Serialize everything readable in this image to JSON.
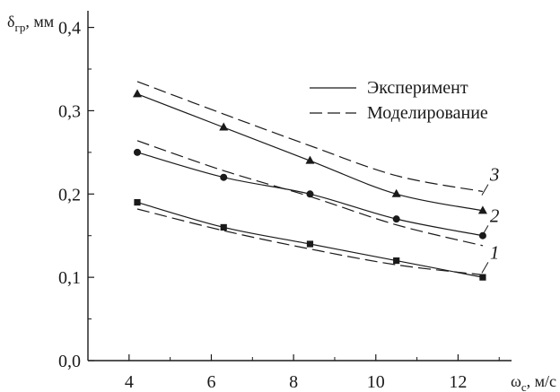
{
  "chart_data": {
    "type": "line",
    "ylabel": "δгр, мм",
    "xlabel": "ωс, м/с",
    "xlim": [
      3.0,
      13.3
    ],
    "ylim": [
      0.0,
      0.42
    ],
    "x_ticks": [
      4,
      6,
      8,
      10,
      12
    ],
    "x_tick_labels": [
      "4",
      "6",
      "8",
      "10",
      "12"
    ],
    "y_ticks": [
      0.0,
      0.1,
      0.2,
      0.3,
      0.4
    ],
    "y_tick_labels": [
      "0,0",
      "0,1",
      "0,2",
      "0,3",
      "0,4"
    ],
    "legend": {
      "placement": "top-right",
      "entries": [
        {
          "label": "Эксперимент",
          "style": "solid"
        },
        {
          "label": "Моделирование",
          "style": "dashed"
        }
      ]
    },
    "series": [
      {
        "label": "1",
        "marker": "square",
        "experiment": {
          "x": [
            4.2,
            6.3,
            8.4,
            10.5,
            12.6
          ],
          "y": [
            0.19,
            0.16,
            0.14,
            0.12,
            0.1
          ]
        },
        "model": {
          "x": [
            4.2,
            6.3,
            8.4,
            10.5,
            12.6
          ],
          "y": [
            0.182,
            0.156,
            0.134,
            0.115,
            0.103
          ]
        }
      },
      {
        "label": "2",
        "marker": "circle",
        "experiment": {
          "x": [
            4.2,
            6.3,
            8.4,
            10.5,
            12.6
          ],
          "y": [
            0.25,
            0.22,
            0.2,
            0.17,
            0.15
          ]
        },
        "model": {
          "x": [
            4.2,
            6.3,
            8.4,
            10.5,
            12.6
          ],
          "y": [
            0.264,
            0.228,
            0.197,
            0.163,
            0.138
          ]
        }
      },
      {
        "label": "3",
        "marker": "triangle",
        "experiment": {
          "x": [
            4.2,
            6.3,
            8.4,
            10.5,
            12.6
          ],
          "y": [
            0.32,
            0.28,
            0.24,
            0.2,
            0.18
          ]
        },
        "model": {
          "x": [
            4.2,
            6.3,
            8.4,
            10.5,
            12.6
          ],
          "y": [
            0.335,
            0.296,
            0.258,
            0.222,
            0.203
          ]
        }
      }
    ]
  }
}
